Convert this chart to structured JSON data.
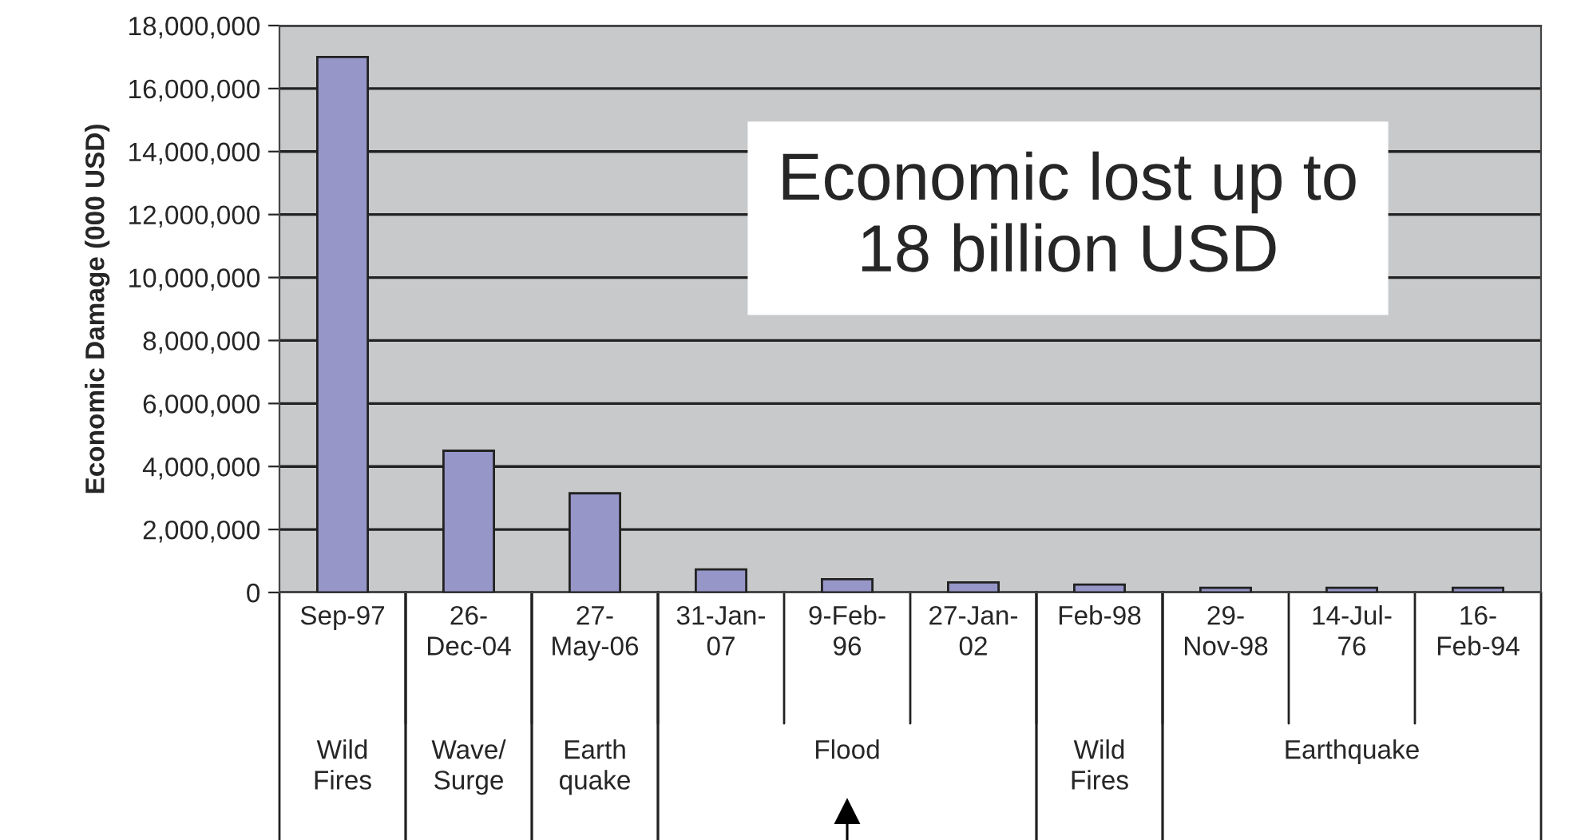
{
  "chart_data": {
    "type": "bar",
    "ylabel": "Economic Damage (000 USD)",
    "categories": [
      "Sep-97",
      "26-\nDec-04",
      "27-\nMay-06",
      "31-Jan-\n07",
      "9-Feb-\n96",
      "27-Jan-\n02",
      "Feb-98",
      "29-\nNov-98",
      "14-Jul-\n76",
      "16-\nFeb-94"
    ],
    "values": [
      17000000,
      4500000,
      3150000,
      730000,
      420000,
      320000,
      250000,
      150000,
      150000,
      150000
    ],
    "color": "#9696c8",
    "ylim": [
      0,
      18000000
    ],
    "yticks": [
      {
        "value": 0,
        "label": "0"
      },
      {
        "value": 2000000,
        "label": "2,000,000"
      },
      {
        "value": 4000000,
        "label": "4,000,000"
      },
      {
        "value": 6000000,
        "label": "6,000,000"
      },
      {
        "value": 8000000,
        "label": "8,000,000"
      },
      {
        "value": 10000000,
        "label": "10,000,000"
      },
      {
        "value": 12000000,
        "label": "12,000,000"
      },
      {
        "value": 14000000,
        "label": "14,000,000"
      },
      {
        "value": 16000000,
        "label": "16,000,000"
      },
      {
        "value": 18000000,
        "label": "18,000,000"
      }
    ],
    "grid": "y",
    "annotations": [
      "Wild\nFires",
      "Wave/\nSurge",
      "Earth\nquake",
      "Flood",
      "Wild\nFires",
      "Earthquake",
      "Economic lost up to\n18 billion USD"
    ]
  }
}
